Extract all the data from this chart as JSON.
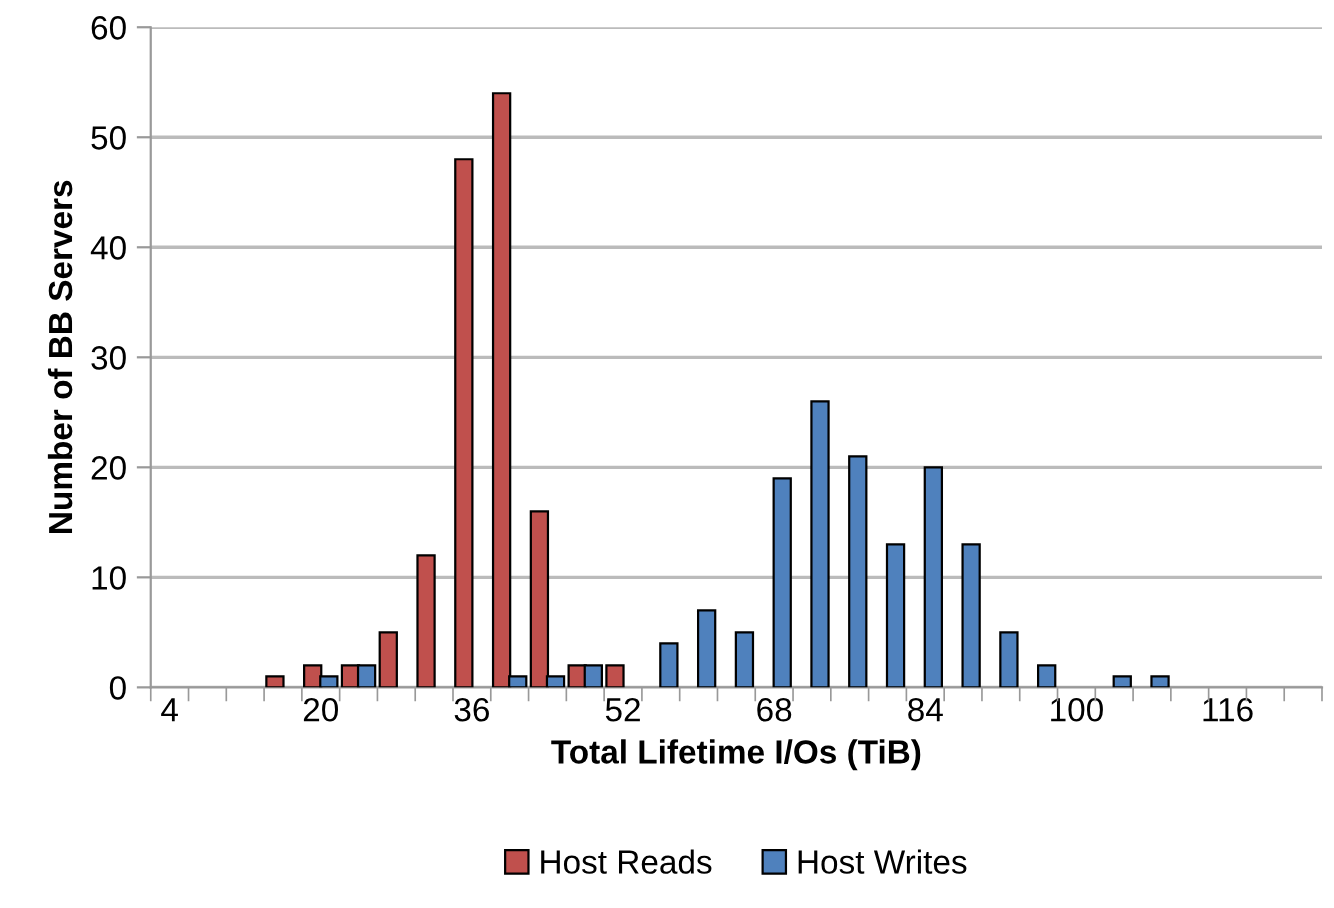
{
  "chart_data": {
    "type": "bar",
    "xlabel": "Total Lifetime I/Os (TiB)",
    "ylabel": "Number of BB Servers",
    "categories": [
      "4",
      null,
      null,
      null,
      "20",
      null,
      null,
      null,
      "36",
      null,
      null,
      null,
      "52",
      null,
      null,
      null,
      "68",
      null,
      null,
      null,
      "84",
      null,
      null,
      null,
      "100",
      null,
      null,
      null,
      "116",
      null,
      null
    ],
    "series": [
      {
        "name": "Host Reads",
        "color": "#c0504d",
        "values": [
          null,
          null,
          null,
          1,
          2,
          2,
          5,
          12,
          48,
          54,
          16,
          2,
          2,
          null,
          null,
          null,
          null,
          null,
          null,
          null,
          null,
          null,
          null,
          null,
          null,
          null,
          null,
          null,
          null,
          null,
          null
        ]
      },
      {
        "name": "Host Writes",
        "color": "#4f81bd",
        "values": [
          null,
          null,
          null,
          null,
          1,
          2,
          null,
          null,
          null,
          1,
          1,
          2,
          null,
          4,
          7,
          5,
          19,
          26,
          21,
          13,
          20,
          13,
          5,
          2,
          null,
          1,
          1,
          null,
          null,
          null,
          null
        ]
      }
    ],
    "ylim": [
      0,
      60
    ],
    "yticks": [
      0,
      10,
      20,
      30,
      40,
      50,
      60
    ],
    "grid": "y",
    "legend": "bottom"
  }
}
